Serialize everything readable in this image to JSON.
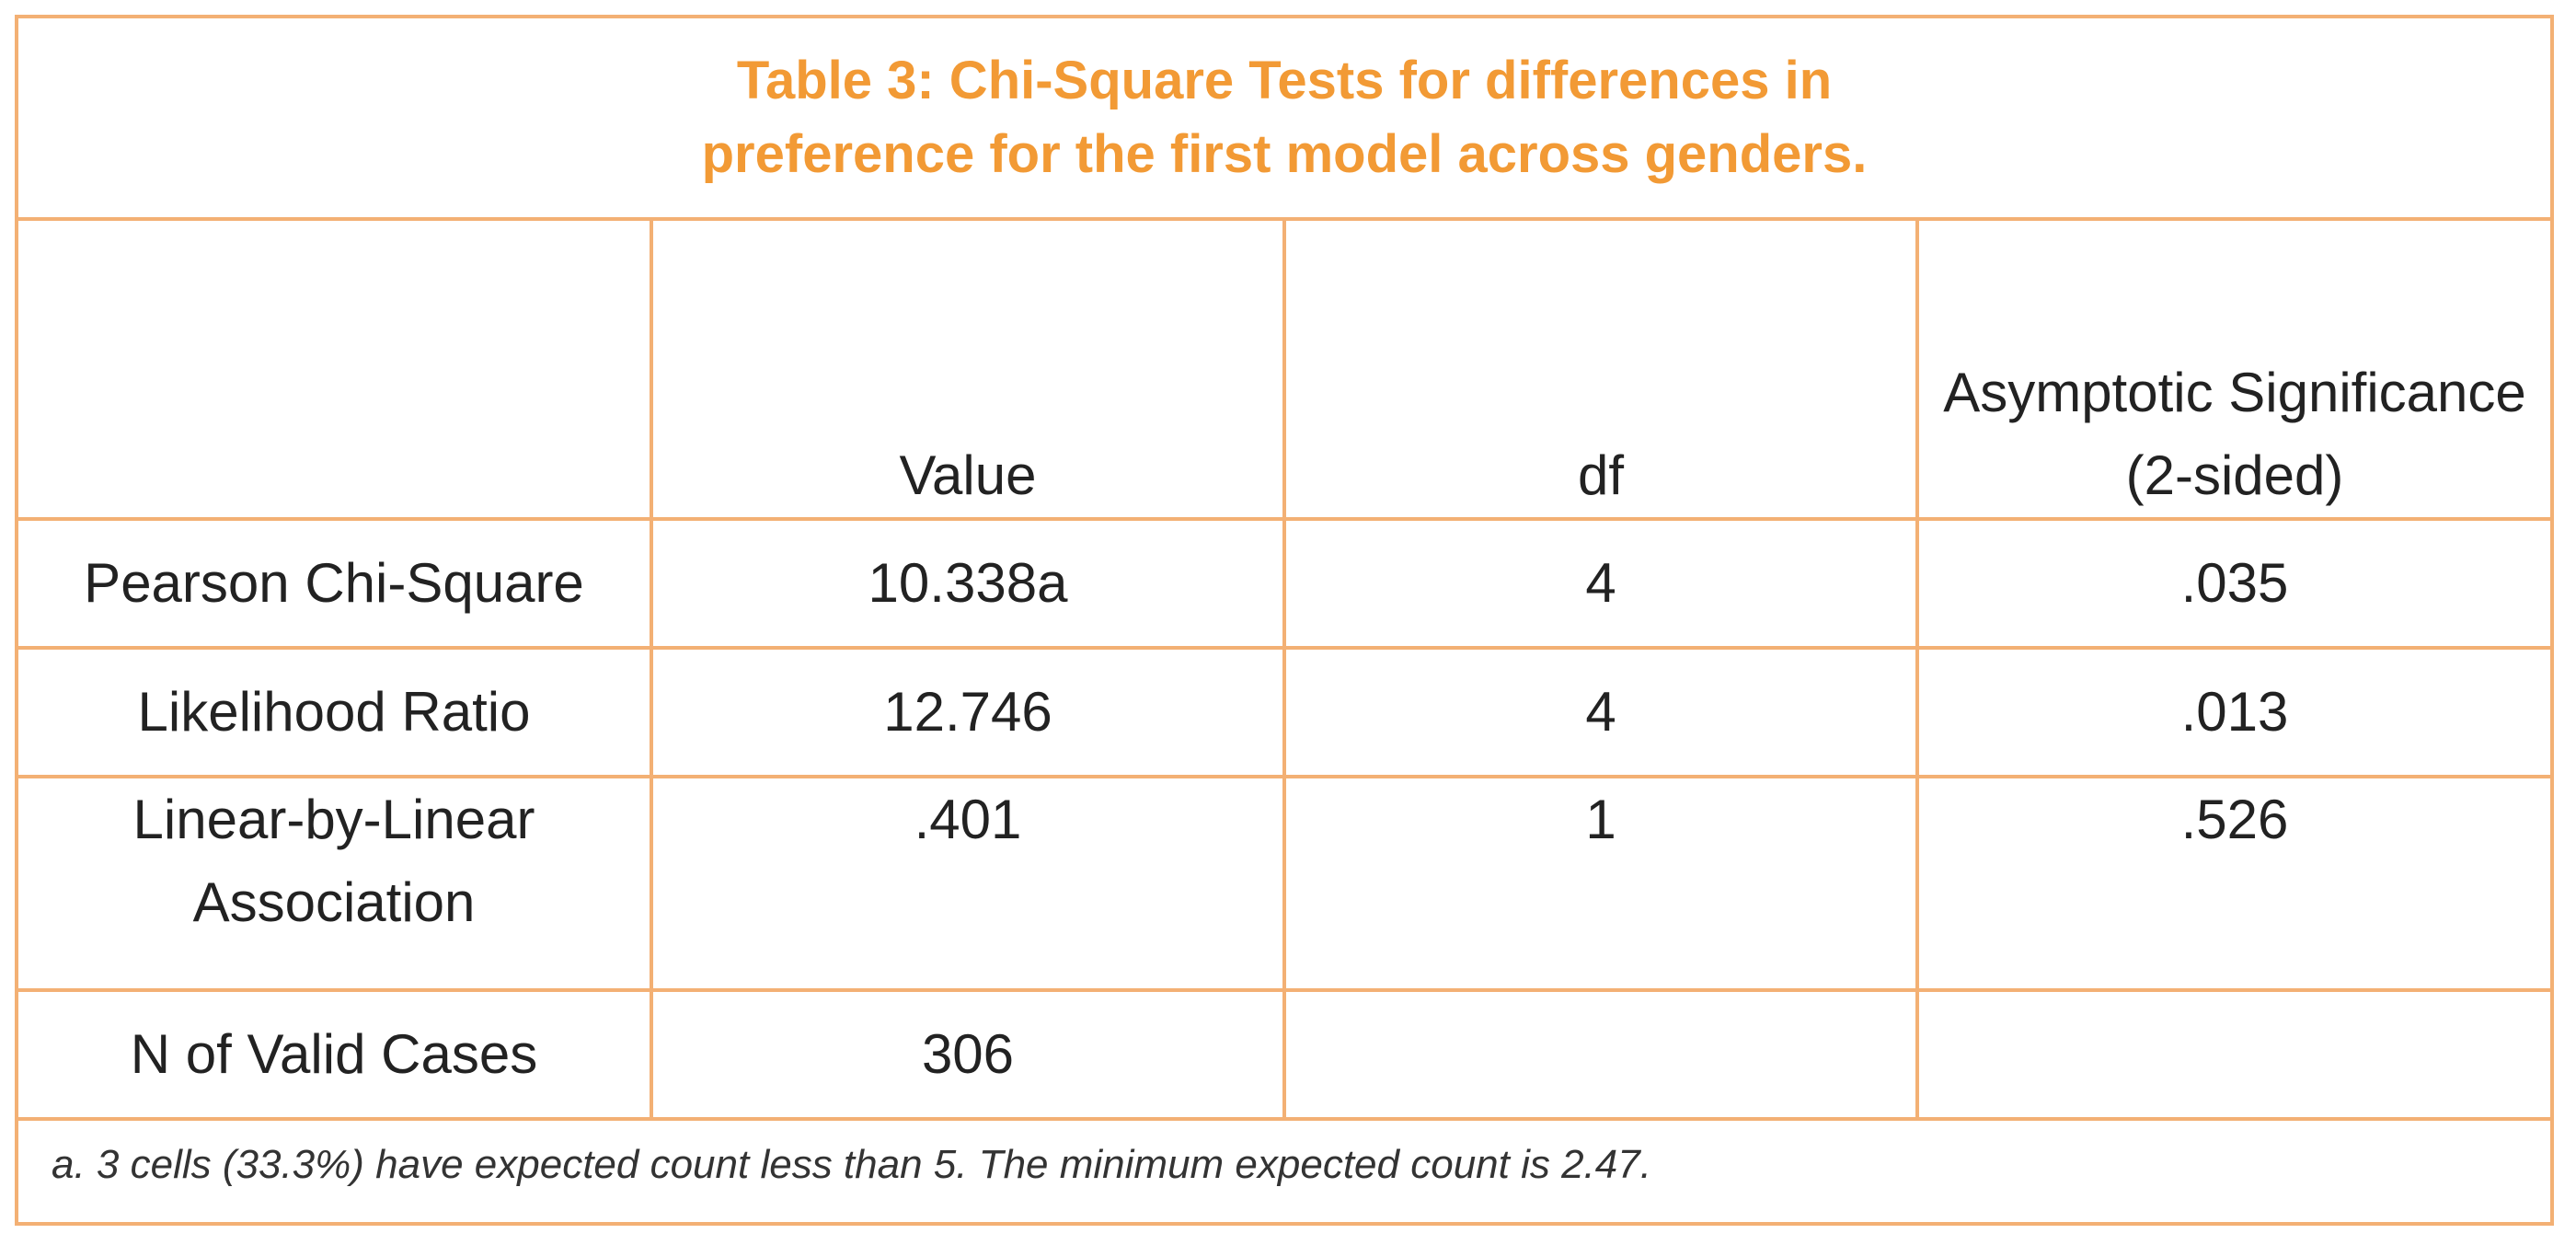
{
  "table": {
    "title": "Table 3: Chi-Square Tests for differences in preference for the first model across genders.",
    "headers": [
      "",
      "Value",
      "df",
      "Asymptotic Significance (2-sided)"
    ],
    "rows": [
      [
        "Pearson Chi-Square",
        "10.338a",
        "4",
        ".035"
      ],
      [
        "Likelihood Ratio",
        "12.746",
        "4",
        ".013"
      ],
      [
        "Linear-by-Linear Association",
        ".401",
        "1",
        ".526"
      ],
      [
        "N of Valid Cases",
        "306",
        "",
        ""
      ]
    ],
    "footnote": "a. 3 cells (33.3%) have expected count less than 5. The minimum expected count is 2.47."
  },
  "colors": {
    "border": "#f3b074",
    "title": "#f29a35",
    "text": "#222222"
  }
}
